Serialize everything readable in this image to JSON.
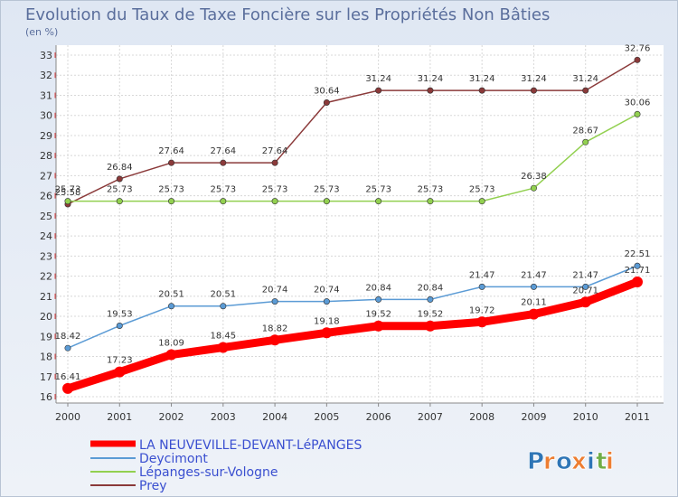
{
  "chart_data": {
    "type": "line",
    "title": "Evolution du Taux de Taxe Foncière sur les Propriétés Non Bâties",
    "subtitle": "(en %)",
    "xlabel": "",
    "ylabel": "(en %)",
    "categories": [
      "2000",
      "2001",
      "2002",
      "2003",
      "2004",
      "2005",
      "2006",
      "2007",
      "2008",
      "2009",
      "2010",
      "2011"
    ],
    "ylim": [
      16,
      33
    ],
    "yticks": [
      "16",
      "17",
      "18",
      "19",
      "20",
      "21",
      "22",
      "23",
      "24",
      "25",
      "26",
      "27",
      "28",
      "29",
      "30",
      "31",
      "32",
      "33"
    ],
    "grid": true,
    "legend_position": "bottom-left",
    "series": [
      {
        "name": "LA NEUVEVILLE-DEVANT-LéPANGES",
        "color": "#ff0000",
        "values": [
          16.41,
          17.23,
          18.09,
          18.45,
          18.82,
          19.18,
          19.52,
          19.52,
          19.72,
          20.11,
          20.71,
          21.71
        ],
        "labels": [
          "16.41",
          "17.23",
          "18.09",
          "18.45",
          "18.82",
          "19.18",
          "19.52",
          "19.52",
          "19.72",
          "20.11",
          "20.71",
          "21.71"
        ]
      },
      {
        "name": "Deycimont",
        "color": "#5b9bd5",
        "values": [
          18.42,
          19.53,
          20.51,
          20.51,
          20.74,
          20.74,
          20.84,
          20.84,
          21.47,
          21.47,
          21.47,
          22.51
        ],
        "labels": [
          "18.42",
          "19.53",
          "20.51",
          "20.51",
          "20.74",
          "20.74",
          "20.84",
          "20.84",
          "21.47",
          "21.47",
          "21.47",
          "22.51"
        ]
      },
      {
        "name": "Lépanges-sur-Vologne",
        "color": "#92d050",
        "values": [
          25.73,
          25.73,
          25.73,
          25.73,
          25.73,
          25.73,
          25.73,
          25.73,
          25.73,
          26.38,
          28.67,
          30.06
        ],
        "labels": [
          "25.73",
          "25.73",
          "25.73",
          "25.73",
          "25.73",
          "25.73",
          "25.73",
          "25.73",
          "25.73",
          "26.38",
          "28.67",
          "30.06"
        ]
      },
      {
        "name": "Prey",
        "color": "#8b3a3a",
        "values": [
          25.58,
          26.84,
          27.64,
          27.64,
          27.64,
          30.64,
          31.24,
          31.24,
          31.24,
          31.24,
          31.24,
          32.76
        ],
        "labels": [
          "25.58",
          "26.84",
          "27.64",
          "27.64",
          "27.64",
          "30.64",
          "31.24",
          "31.24",
          "31.24",
          "31.24",
          "31.24",
          "32.76"
        ]
      }
    ]
  },
  "legend": {
    "items": [
      "LA NEUVEVILLE-DEVANT-LéPANGES",
      "Deycimont",
      "Lépanges-sur-Vologne",
      "Prey"
    ]
  },
  "logo": {
    "text": "Proxiti",
    "colors": [
      "#2e75b6",
      "#ed7d31",
      "#2e75b6",
      "#ed7d31",
      "#2e75b6",
      "#70ad47",
      "#ed7d31"
    ]
  }
}
